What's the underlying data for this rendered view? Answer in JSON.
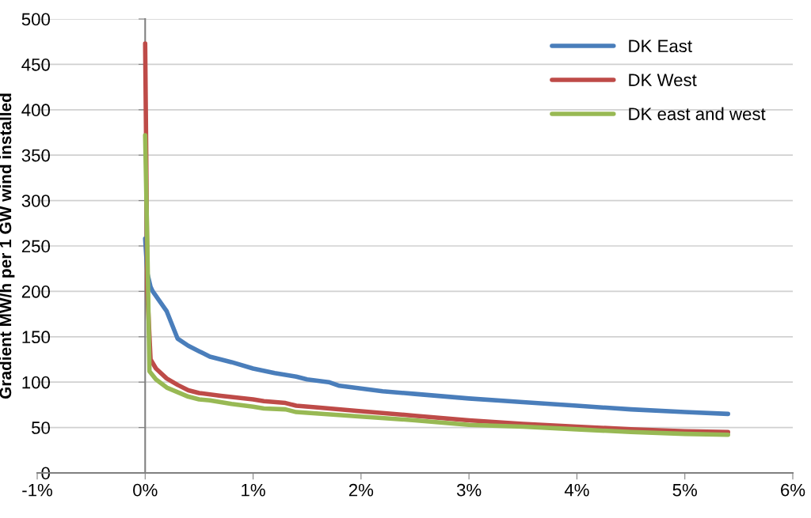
{
  "chart_data": {
    "type": "line",
    "ylabel": "Gradient MW/h per 1 GW wind installed",
    "xlim": [
      -1,
      6
    ],
    "xticks": [
      {
        "value": -1,
        "label": "-1%"
      },
      {
        "value": 0,
        "label": "0%"
      },
      {
        "value": 1,
        "label": "1%"
      },
      {
        "value": 2,
        "label": "2%"
      },
      {
        "value": 3,
        "label": "3%"
      },
      {
        "value": 4,
        "label": "4%"
      },
      {
        "value": 5,
        "label": "5%"
      },
      {
        "value": 6,
        "label": "6%"
      }
    ],
    "ylim": [
      0,
      500
    ],
    "yticks": [
      0,
      50,
      100,
      150,
      200,
      250,
      300,
      350,
      400,
      450,
      500
    ],
    "grid": "y",
    "legend": "top right",
    "marker": "none",
    "line_style": "solid",
    "series": [
      {
        "name": "DK East",
        "color": "#4a7ebb",
        "x": [
          0,
          0.02,
          0.05,
          0.07,
          0.2,
          0.3,
          0.4,
          0.5,
          0.6,
          0.8,
          1,
          1.2,
          1.4,
          1.5,
          1.7,
          1.8,
          2,
          2.2,
          2.5,
          3,
          3.5,
          4,
          4.5,
          5,
          5.4
        ],
        "values": [
          258,
          220,
          205,
          200,
          178,
          148,
          140,
          134,
          128,
          122,
          115,
          110,
          106,
          103,
          100,
          96,
          93,
          90,
          87,
          82,
          78,
          74,
          70,
          67,
          65
        ]
      },
      {
        "name": "DK West",
        "color": "#be4b48",
        "x": [
          0,
          0.01,
          0.02,
          0.05,
          0.1,
          0.2,
          0.3,
          0.4,
          0.5,
          0.7,
          1,
          1.1,
          1.3,
          1.4,
          1.6,
          2,
          2.5,
          3,
          3.5,
          4,
          4.5,
          5,
          5.4
        ],
        "values": [
          473,
          350,
          200,
          125,
          115,
          104,
          97,
          91,
          88,
          85,
          81,
          79,
          77,
          74,
          72,
          68,
          63,
          58,
          54,
          51,
          48,
          46,
          45
        ]
      },
      {
        "name": "DK east and west",
        "color": "#98b954",
        "x": [
          0,
          0.02,
          0.04,
          0.1,
          0.2,
          0.3,
          0.4,
          0.5,
          0.6,
          0.8,
          1,
          1.1,
          1.3,
          1.4,
          2,
          2.5,
          3,
          3.5,
          4,
          4.5,
          5,
          5.4
        ],
        "values": [
          372,
          250,
          112,
          103,
          94,
          89,
          84,
          81,
          80,
          76,
          73,
          71,
          70,
          67,
          62,
          58,
          53,
          51,
          48,
          45,
          43,
          42
        ]
      }
    ]
  }
}
